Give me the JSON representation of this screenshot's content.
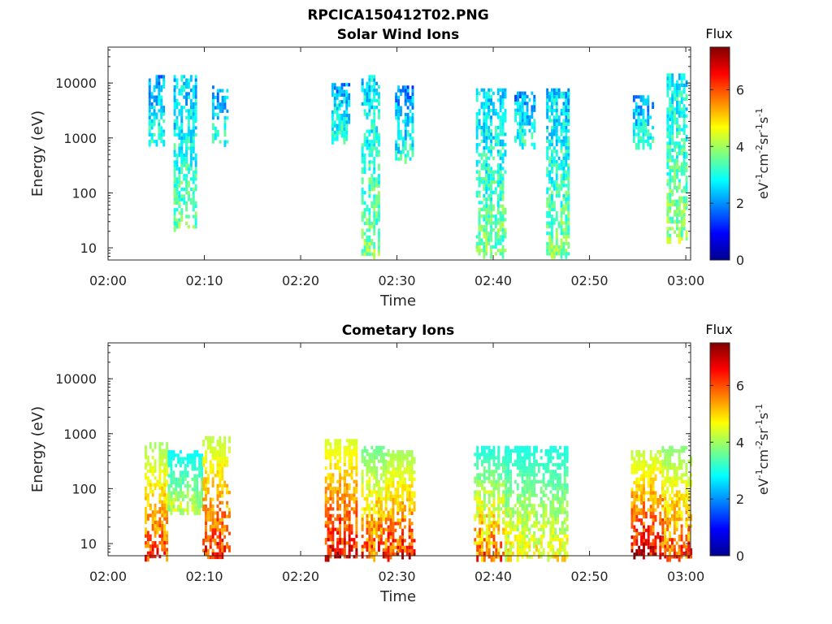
{
  "figure_title": "RPCICA150412T02.PNG",
  "colorbar": {
    "label": "Flux",
    "unit_text": "eV-1cm-2sr-1s-1",
    "range": [
      0,
      7.5
    ],
    "ticks": [
      "0",
      "2",
      "4",
      "6"
    ],
    "tick_values": [
      0,
      2,
      4,
      6
    ],
    "colormap": "jet"
  },
  "chart_data": [
    {
      "type": "heatmap",
      "title": "Solar Wind Ions",
      "xlabel": "Time",
      "ylabel": "Energy (eV)",
      "x_ticks": [
        "02:00",
        "02:10",
        "02:20",
        "02:30",
        "02:40",
        "02:50",
        "03:00"
      ],
      "x_tick_minutes": [
        0,
        10,
        20,
        30,
        40,
        50,
        60
      ],
      "xlim_minutes": [
        0,
        60.5
      ],
      "y_scale": "log",
      "y_ticks": [
        "10",
        "100",
        "1000",
        "10000"
      ],
      "y_tick_values": [
        10,
        100,
        1000,
        10000
      ],
      "ylim": [
        6,
        45000
      ],
      "grid": false,
      "bursts": [
        {
          "start_min": 4.2,
          "end_min": 5.8,
          "e_min": 900,
          "e_max": 14000,
          "flux": 2.0
        },
        {
          "start_min": 6.8,
          "end_min": 9.2,
          "e_min": 25,
          "e_max": 14000,
          "flux": 2.4
        },
        {
          "start_min": 10.8,
          "end_min": 12.5,
          "e_min": 900,
          "e_max": 9000,
          "flux": 2.0
        },
        {
          "start_min": 23.2,
          "end_min": 25.0,
          "e_min": 1000,
          "e_max": 10000,
          "flux": 2.1
        },
        {
          "start_min": 26.3,
          "end_min": 28.2,
          "e_min": 8,
          "e_max": 14000,
          "flux": 2.6
        },
        {
          "start_min": 29.8,
          "end_min": 31.6,
          "e_min": 400,
          "e_max": 9000,
          "flux": 1.9
        },
        {
          "start_min": 38.2,
          "end_min": 41.2,
          "e_min": 8,
          "e_max": 8000,
          "flux": 2.5
        },
        {
          "start_min": 42.2,
          "end_min": 44.2,
          "e_min": 800,
          "e_max": 7000,
          "flux": 2.0
        },
        {
          "start_min": 45.5,
          "end_min": 47.8,
          "e_min": 8,
          "e_max": 8000,
          "flux": 2.5
        },
        {
          "start_min": 54.5,
          "end_min": 56.5,
          "e_min": 800,
          "e_max": 6000,
          "flux": 2.0
        },
        {
          "start_min": 58.0,
          "end_min": 60.2,
          "e_min": 15,
          "e_max": 15000,
          "flux": 2.7
        }
      ]
    },
    {
      "type": "heatmap",
      "title": "Cometary Ions",
      "xlabel": "Time",
      "ylabel": "Energy (eV)",
      "x_ticks": [
        "02:00",
        "02:10",
        "02:20",
        "02:30",
        "02:40",
        "02:50",
        "03:00"
      ],
      "x_tick_minutes": [
        0,
        10,
        20,
        30,
        40,
        50,
        60
      ],
      "xlim_minutes": [
        0,
        60.5
      ],
      "y_scale": "log",
      "y_ticks": [
        "10",
        "100",
        "1000",
        "10000"
      ],
      "y_tick_values": [
        10,
        100,
        1000,
        10000
      ],
      "ylim": [
        6,
        45000
      ],
      "grid": false,
      "bursts": [
        {
          "start_min": 3.8,
          "end_min": 6.2,
          "e_min": 6,
          "e_max": 700,
          "flux": 4.0,
          "peak_flux": 6.5
        },
        {
          "start_min": 6.2,
          "end_min": 9.8,
          "e_min": 40,
          "e_max": 500,
          "flux": 2.8,
          "peak_flux": 4.5
        },
        {
          "start_min": 9.8,
          "end_min": 12.6,
          "e_min": 6,
          "e_max": 900,
          "flux": 4.2,
          "peak_flux": 6.8
        },
        {
          "start_min": 22.5,
          "end_min": 25.8,
          "e_min": 6,
          "e_max": 800,
          "flux": 4.4,
          "peak_flux": 7.0
        },
        {
          "start_min": 26.3,
          "end_min": 29.0,
          "e_min": 6,
          "e_max": 600,
          "flux": 3.6,
          "peak_flux": 6.5
        },
        {
          "start_min": 29.0,
          "end_min": 31.8,
          "e_min": 6,
          "e_max": 500,
          "flux": 4.0,
          "peak_flux": 6.8
        },
        {
          "start_min": 38.0,
          "end_min": 41.2,
          "e_min": 6,
          "e_max": 600,
          "flux": 3.0,
          "peak_flux": 6.2
        },
        {
          "start_min": 41.2,
          "end_min": 47.8,
          "e_min": 6,
          "e_max": 600,
          "flux": 3.0,
          "peak_flux": 5.0
        },
        {
          "start_min": 54.3,
          "end_min": 57.5,
          "e_min": 6,
          "e_max": 500,
          "flux": 4.2,
          "peak_flux": 7.3
        },
        {
          "start_min": 57.5,
          "end_min": 60.5,
          "e_min": 6,
          "e_max": 600,
          "flux": 3.8,
          "peak_flux": 6.5
        }
      ]
    }
  ]
}
